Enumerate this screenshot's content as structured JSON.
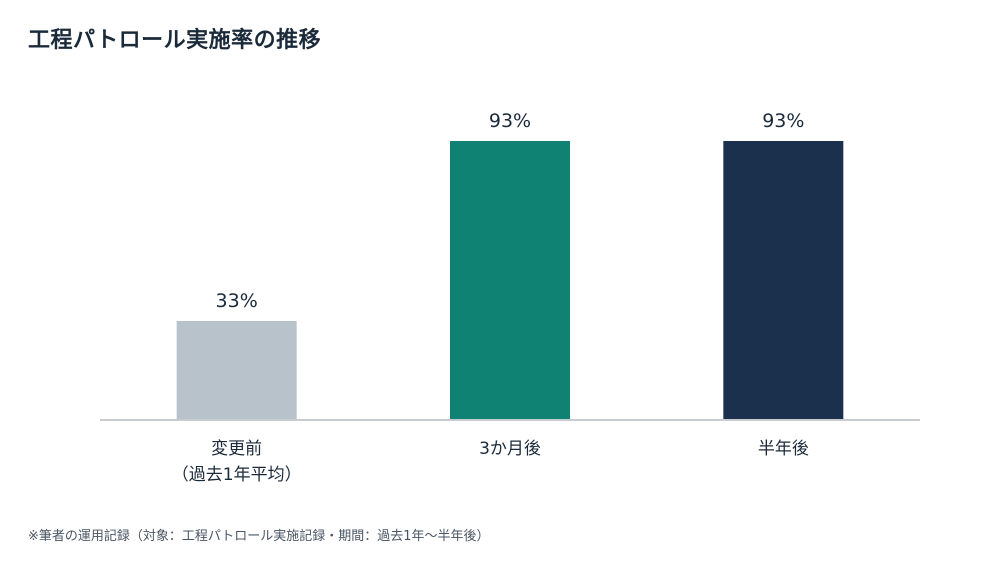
{
  "title": "工程パトロール実施率の推移",
  "footnote": "※筆者の運用記録（対象：工程パトロール実施記録・期間：過去1年〜半年後）",
  "colors": {
    "text": "#1b2a3a",
    "axis": "#c8ccd1",
    "bars": [
      "#b8c2cb",
      "#0f8274",
      "#1a304d"
    ]
  },
  "chart_data": {
    "type": "bar",
    "categories": [
      [
        "変更前",
        "（過去1年平均）"
      ],
      [
        "3か月後"
      ],
      [
        "半年後"
      ]
    ],
    "values": [
      33,
      93,
      93
    ],
    "value_labels": [
      "33%",
      "93%",
      "93%"
    ],
    "unit": "%",
    "ylim": [
      0,
      100
    ],
    "grid": false,
    "legend": "none"
  }
}
